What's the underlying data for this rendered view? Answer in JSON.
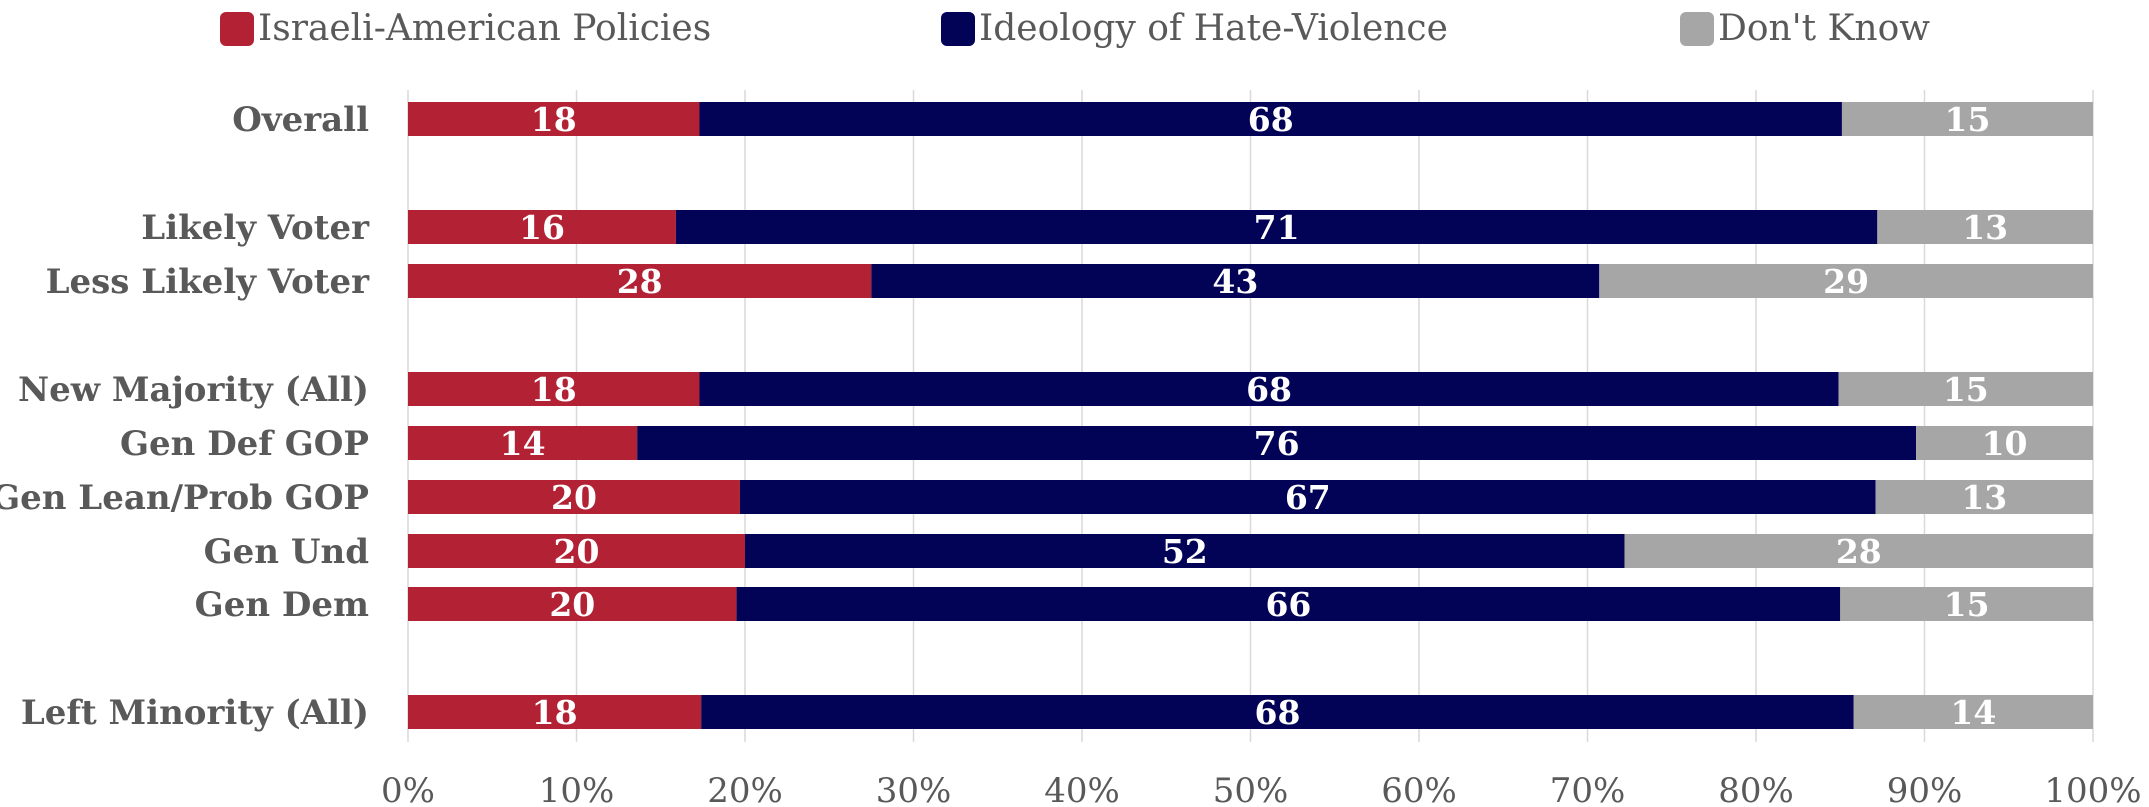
{
  "chart_data": {
    "type": "bar",
    "orientation": "horizontal",
    "stacked": true,
    "title": "",
    "xlabel": "",
    "ylabel": "",
    "xlim": [
      0,
      100
    ],
    "x_ticks": [
      0,
      10,
      20,
      30,
      40,
      50,
      60,
      70,
      80,
      90,
      100
    ],
    "x_tick_format": "{v}%",
    "grid": "vertical",
    "legend_position": "top",
    "rows": [
      {
        "category": "Overall",
        "group": 0
      },
      {
        "category": "",
        "spacer": true
      },
      {
        "category": "Likely Voter",
        "group": 1
      },
      {
        "category": "Less Likely Voter",
        "group": 1
      },
      {
        "category": "",
        "spacer": true
      },
      {
        "category": "New Majority (All)",
        "group": 2
      },
      {
        "category": "Gen Def GOP",
        "group": 2
      },
      {
        "category": "Gen Lean/Prob GOP",
        "group": 2
      },
      {
        "category": "Gen Und",
        "group": 2
      },
      {
        "category": "Gen Dem",
        "group": 2
      },
      {
        "category": "",
        "spacer": true
      },
      {
        "category": "Left Minority (All)",
        "group": 3
      }
    ],
    "categories": [
      "Overall",
      "Likely Voter",
      "Less Likely Voter",
      "New Majority (All)",
      "Gen Def GOP",
      "Gen Lean/Prob GOP",
      "Gen Und",
      "Gen Dem",
      "Left Minority (All)"
    ],
    "series": [
      {
        "name": "Israeli-American Policies",
        "color": "#b22234",
        "values": [
          18,
          16,
          28,
          18,
          14,
          20,
          20,
          20,
          18
        ],
        "extents": [
          17.3,
          15.9,
          27.5,
          17.3,
          13.6,
          19.7,
          20.0,
          19.5,
          17.4
        ]
      },
      {
        "name": "Ideology of Hate-Violence",
        "color": "#020356",
        "values": [
          68,
          71,
          43,
          68,
          76,
          67,
          52,
          66,
          68
        ],
        "extents": [
          67.8,
          71.3,
          43.2,
          67.6,
          75.9,
          67.4,
          52.2,
          65.5,
          68.4
        ]
      },
      {
        "name": "Don't Know",
        "color": "#a6a6a6",
        "values": [
          15,
          13,
          29,
          15,
          10,
          13,
          28,
          15,
          14
        ],
        "extents": [
          14.9,
          12.8,
          29.3,
          15.1,
          10.5,
          12.9,
          27.8,
          15.0,
          14.2
        ]
      }
    ],
    "colors": {
      "text": "#595959",
      "grid": "#d9d9d9",
      "axis": "#d9d9d9"
    }
  }
}
